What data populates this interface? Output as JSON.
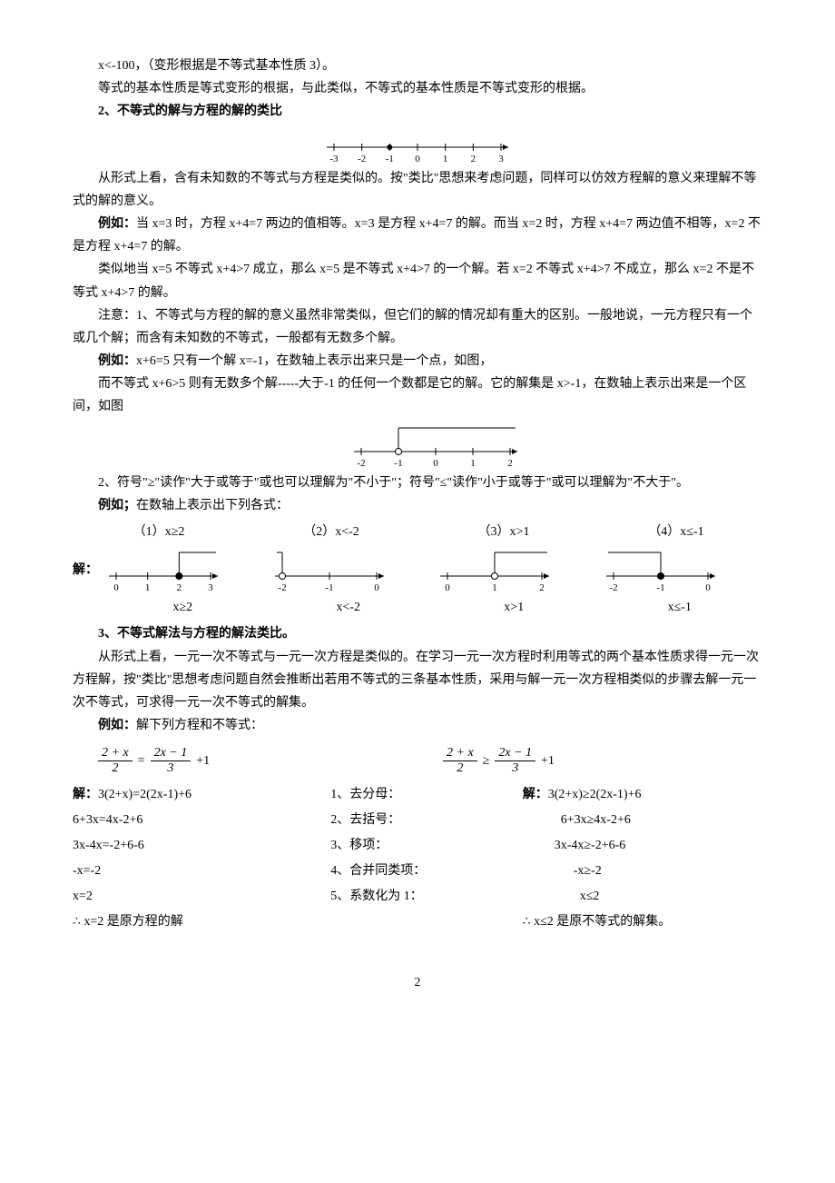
{
  "line1": "x<-100，（变形根据是不等式基本性质 3）。",
  "line2": "等式的基本性质是等式变形的根据，与此类似，不等式的基本性质是不等式变形的根据。",
  "sec2_title": "2、不等式的解与方程的解的类比",
  "nl1": {
    "ticks": [
      -3,
      -2,
      -1,
      0,
      1,
      2,
      3
    ],
    "filled_point": -1
  },
  "p_analogy": "从形式上看，含有未知数的不等式与方程是类似的。按\"类比\"思想来考虑问题，同样可以仿效方程解的意义来理解不等式的解的意义。",
  "ex1_label": "例如：",
  "ex1_a": "当 x=3 时，方程 x+4=7 两边的值相等。x=3 是方程 x+4=7 的解。而当 x=2 时，方程 x+4=7 两边值不相等，x=2 不是方程 x+4=7 的解。",
  "ex1_b": "类似地当 x=5 不等式 x+4>7 成立，那么 x=5 是不等式 x+4>7 的一个解。若 x=2 不等式 x+4>7 不成立，那么 x=2 不是不等式 x+4>7 的解。",
  "note1": "注意：1、不等式与方程的解的意义虽然非常类似，但它们的解的情况却有重大的区别。一般地说，一元方程只有一个或几个解；而含有未知数的不等式，一般都有无数多个解。",
  "ex2_label": "例如：",
  "ex2_a": "x+6=5 只有一个解 x=-1，在数轴上表示出来只是一个点，如图，",
  "ex2_b": "而不等式 x+6>5 则有无数多个解-----大于-1 的任何一个数都是它的解。它的解集是 x>-1，在数轴上表示出来是一个区间，如图",
  "nl2": {
    "ticks": [
      -2,
      -1,
      0,
      1,
      2
    ],
    "open_point": -1,
    "ray_dir": "right"
  },
  "note2": "2、符号\"≥\"读作\"大于或等于\"或也可以理解为\"不小于\"；符号\"≤\"读作\"小于或等于\"或可以理解为\"不大于\"。",
  "ex3_label": "例如；",
  "ex3_intro": "在数轴上表示出下列各式：",
  "items": [
    {
      "label": "（1）x≥2",
      "ticks": [
        0,
        1,
        2,
        3
      ],
      "point": 2,
      "closed": true,
      "dir": "right",
      "caption": "x≥2"
    },
    {
      "label": "（2）x<-2",
      "ticks": [
        -2,
        -1,
        0
      ],
      "point": -2,
      "closed": false,
      "dir": "left",
      "caption": "x<-2"
    },
    {
      "label": "（3）x>1",
      "ticks": [
        0,
        1,
        2
      ],
      "point": 1,
      "closed": false,
      "dir": "right",
      "caption": "x>1"
    },
    {
      "label": "（4）x≤-1",
      "ticks": [
        -2,
        -1,
        0
      ],
      "point": -1,
      "closed": true,
      "dir": "left",
      "caption": "x≤-1"
    }
  ],
  "solve_prefix": "解：",
  "sec3_title": "3、不等式解法与方程的解法类比。",
  "p3": "从形式上看，一元一次不等式与一元一次方程是类似的。在学习一元一次方程时利用等式的两个基本性质求得一元一次方程解，按\"类比\"思想考虑问题自然会推断出若用不等式的三条基本性质，采用与解一元一次方程相类似的步骤去解一元一次不等式，可求得一元一次不等式的解集。",
  "ex4_label": "例如：",
  "ex4_intro": "解下列方程和不等式：",
  "eq_left": {
    "num1": "2 + x",
    "den1": "2",
    "op": "=",
    "num2": "2x − 1",
    "den2": "3",
    "tail": "+1"
  },
  "eq_right": {
    "num1": "2 + x",
    "den1": "2",
    "op": "≥",
    "num2": "2x − 1",
    "den2": "3",
    "tail": "+1"
  },
  "solve_label": "解：",
  "steps_mid": [
    "1、去分母：",
    "2、去括号：",
    "3、移项：",
    "4、合并同类项：",
    "5、系数化为 1："
  ],
  "left_steps": [
    "3(2+x)=2(2x-1)+6",
    "6+3x=4x-2+6",
    "3x-4x=-2+6-6",
    "-x=-2",
    "x=2",
    "∴ x=2 是原方程的解"
  ],
  "right_steps": [
    "3(2+x)≥2(2x-1)+6",
    "6+3x≥4x-2+6",
    "3x-4x≥-2+6-6",
    "-x≥-2",
    "x≤2",
    "∴ x≤2 是原不等式的解集。"
  ],
  "page_number": "2",
  "colors": {
    "text": "#000000",
    "bg": "#ffffff"
  }
}
